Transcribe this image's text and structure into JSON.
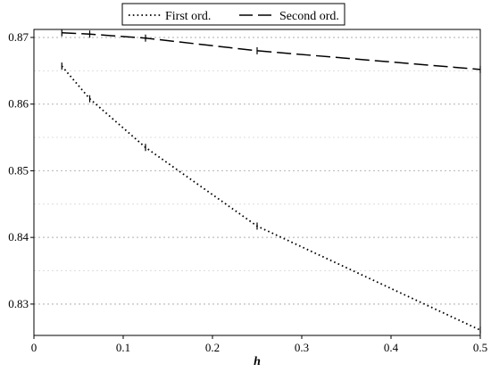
{
  "chart_data": {
    "type": "line",
    "title": "",
    "xlabel": "h",
    "ylabel": "",
    "xlim": [
      0,
      0.5
    ],
    "ylim": [
      0.8253,
      0.8712
    ],
    "grid": true,
    "legend_position": "top-center",
    "x_ticks": [
      "0",
      "0.1",
      "0.2",
      "0.3",
      "0.4",
      "0.5"
    ],
    "y_ticks": [
      "0.83",
      "0.84",
      "0.85",
      "0.86",
      "0.87"
    ],
    "series": [
      {
        "name": "First ord.",
        "style": "dotted",
        "color": "#000000",
        "x": [
          0.03125,
          0.0625,
          0.125,
          0.25,
          0.5
        ],
        "y": [
          0.8657,
          0.8608,
          0.8535,
          0.8417,
          0.8261
        ]
      },
      {
        "name": "Second ord.",
        "style": "dashed",
        "color": "#000000",
        "x": [
          0.03125,
          0.0625,
          0.125,
          0.25,
          0.5
        ],
        "y": [
          0.8707,
          0.8705,
          0.8699,
          0.868,
          0.8652
        ]
      }
    ]
  }
}
